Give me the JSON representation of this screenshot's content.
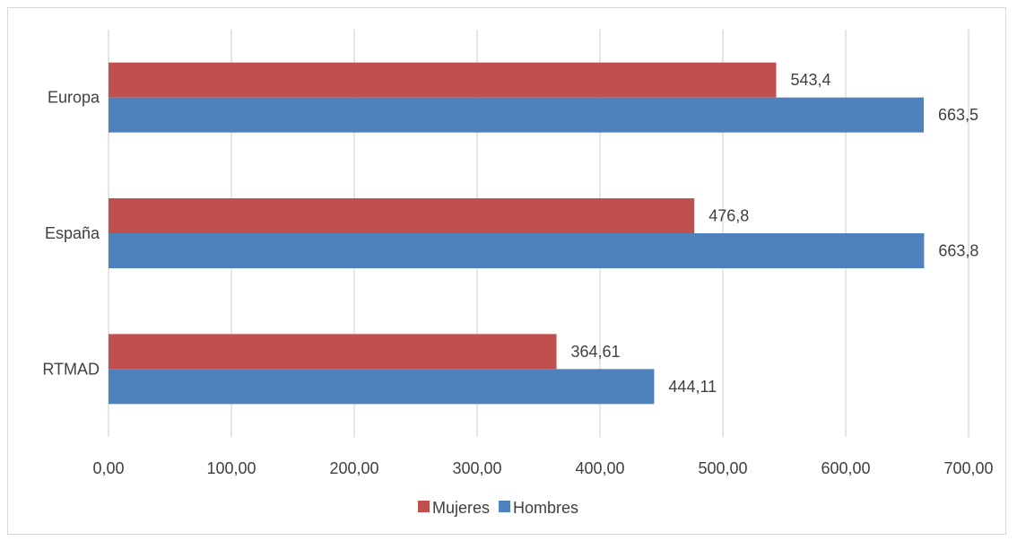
{
  "chart_data": {
    "type": "bar",
    "orientation": "horizontal",
    "categories": [
      "Europa",
      "España",
      "RTMAD"
    ],
    "series": [
      {
        "name": "Mujeres",
        "color": "#c0504d",
        "values": [
          543.4,
          476.8,
          364.61
        ],
        "labels": [
          "543,4",
          "476,8",
          "364,61"
        ]
      },
      {
        "name": "Hombres",
        "color": "#4f81bd",
        "values": [
          663.5,
          663.8,
          444.11
        ],
        "labels": [
          "663,5",
          "663,8",
          "444,11"
        ]
      }
    ],
    "xlim": [
      0,
      700
    ],
    "xticks": [
      0,
      100,
      200,
      300,
      400,
      500,
      600,
      700
    ],
    "xtick_labels": [
      "0,00",
      "100,00",
      "200,00",
      "300,00",
      "400,00",
      "500,00",
      "600,00",
      "700,00"
    ],
    "grid": "vertical",
    "legend": "bottom-center",
    "title": "",
    "xlabel": "",
    "ylabel": ""
  }
}
